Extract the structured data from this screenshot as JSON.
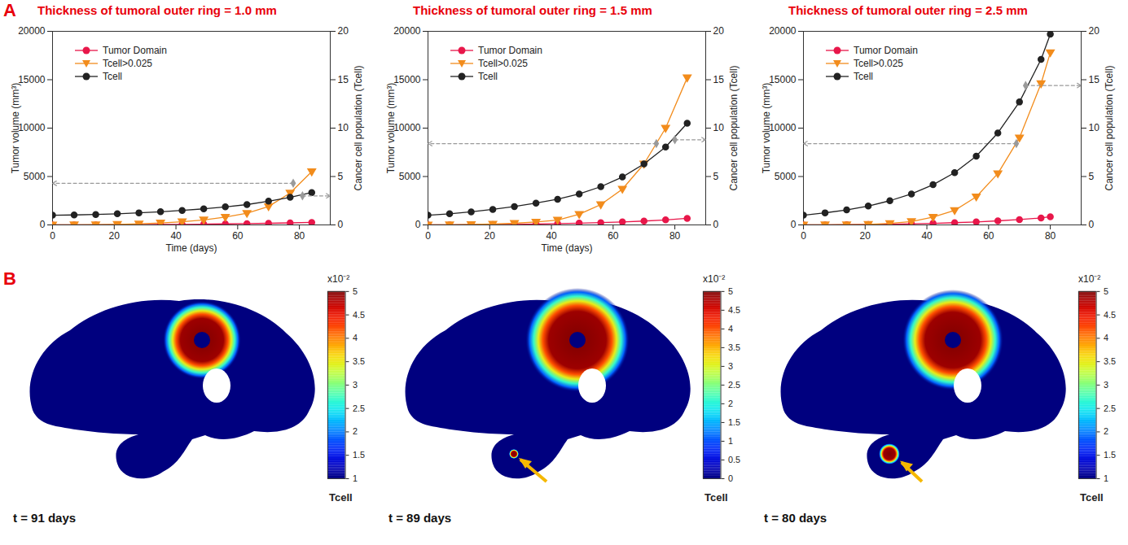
{
  "panel_labels": [
    "A",
    "B"
  ],
  "chart_data": [
    {
      "type": "line",
      "title": "Thickness of tumoral outer ring = 1.0 mm",
      "xlabel": "Time (days)",
      "ylabel": "Tumor volume (mm³)",
      "y2label": "Cancer cell population (Tcell)",
      "xlim": [
        0,
        90
      ],
      "xticks": [
        0,
        20,
        40,
        60,
        80
      ],
      "ylim": [
        0,
        20000
      ],
      "yticks": [
        0,
        5000,
        10000,
        15000,
        20000
      ],
      "y2lim": [
        0,
        20
      ],
      "y2ticks": [
        0,
        5,
        10,
        15,
        20
      ],
      "legend": "upper left",
      "x": [
        0,
        7,
        14,
        21,
        28,
        35,
        42,
        49,
        56,
        63,
        70,
        77,
        84
      ],
      "series": [
        {
          "name": "Tumor Domain",
          "color": "#e8174a",
          "marker": "circle",
          "values": [
            0,
            5,
            10,
            20,
            30,
            45,
            60,
            80,
            105,
            135,
            170,
            210,
            260
          ]
        },
        {
          "name": "Tcell>0.025",
          "color": "#f28c1c",
          "marker": "triangle-down",
          "values": [
            0,
            10,
            30,
            60,
            110,
            200,
            330,
            520,
            800,
            1200,
            1900,
            3300,
            5500
          ]
        },
        {
          "name": "Tcell",
          "color": "#222222",
          "marker": "circle",
          "axis": "y2",
          "values": [
            1.0,
            1.03,
            1.08,
            1.15,
            1.25,
            1.36,
            1.5,
            1.66,
            1.86,
            2.1,
            2.45,
            2.85,
            3.35
          ]
        }
      ],
      "guides": [
        {
          "x": 78,
          "y": 4300,
          "axis": "y"
        },
        {
          "x": 81,
          "y": 3,
          "axis": "y2"
        }
      ]
    },
    {
      "type": "line",
      "title": "Thickness of tumoral outer ring = 1.5 mm",
      "xlabel": "Time (days)",
      "ylabel": "Tumor volume (mm³)",
      "y2label": "Cancer cell population (Tcell)",
      "xlim": [
        0,
        90
      ],
      "xticks": [
        0,
        20,
        40,
        60,
        80
      ],
      "ylim": [
        0,
        20000
      ],
      "yticks": [
        0,
        5000,
        10000,
        15000,
        20000
      ],
      "y2lim": [
        0,
        20
      ],
      "y2ticks": [
        0,
        5,
        10,
        15,
        20
      ],
      "legend": "upper left",
      "x": [
        0,
        7,
        14,
        21,
        28,
        35,
        42,
        49,
        56,
        63,
        70,
        77,
        84
      ],
      "series": [
        {
          "name": "Tumor Domain",
          "color": "#e8174a",
          "marker": "circle",
          "values": [
            0,
            10,
            20,
            40,
            60,
            90,
            130,
            180,
            240,
            310,
            400,
            520,
            680
          ]
        },
        {
          "name": "Tcell>0.025",
          "color": "#f28c1c",
          "marker": "triangle-down",
          "values": [
            0,
            10,
            40,
            90,
            170,
            300,
            500,
            1100,
            2100,
            3700,
            6300,
            10000,
            15200
          ]
        },
        {
          "name": "Tcell",
          "color": "#222222",
          "marker": "circle",
          "axis": "y2",
          "values": [
            1.0,
            1.15,
            1.35,
            1.6,
            1.9,
            2.25,
            2.65,
            3.2,
            3.95,
            4.95,
            6.3,
            8.05,
            10.5
          ]
        }
      ],
      "guides": [
        {
          "x": 74,
          "y": 8400,
          "axis": "y"
        },
        {
          "x": 80,
          "y": 8.8,
          "axis": "y2"
        }
      ]
    },
    {
      "type": "line",
      "title": "Thickness of tumoral outer ring = 2.5 mm",
      "ylabel": "Tumor volume (mm³)",
      "y2label": "Cancer cell population (Tcell)",
      "xlim": [
        0,
        90
      ],
      "xticks": [
        0,
        20,
        40,
        60,
        80
      ],
      "ylim": [
        0,
        20000
      ],
      "yticks": [
        0,
        5000,
        10000,
        15000,
        20000
      ],
      "y2lim": [
        0,
        20
      ],
      "y2ticks": [
        0,
        5,
        10,
        15,
        20
      ],
      "legend": "upper left",
      "x": [
        0,
        7,
        14,
        21,
        28,
        35,
        42,
        49,
        56,
        63,
        70,
        77,
        80
      ],
      "series": [
        {
          "name": "Tumor Domain",
          "color": "#e8174a",
          "marker": "circle",
          "values": [
            0,
            10,
            20,
            40,
            70,
            110,
            160,
            230,
            310,
            420,
            550,
            720,
            850
          ]
        },
        {
          "name": "Tcell>0.025",
          "color": "#f28c1c",
          "marker": "triangle-down",
          "values": [
            0,
            10,
            20,
            60,
            150,
            350,
            800,
            1500,
            2900,
            5300,
            9000,
            14600,
            17800
          ]
        },
        {
          "name": "Tcell",
          "color": "#222222",
          "marker": "circle",
          "axis": "y2",
          "values": [
            1.0,
            1.25,
            1.55,
            1.95,
            2.5,
            3.2,
            4.15,
            5.4,
            7.1,
            9.5,
            12.7,
            17.1,
            19.7
          ]
        }
      ],
      "guides": [
        {
          "x": 69,
          "y": 8400,
          "axis": "y"
        },
        {
          "x": 72,
          "y": 14.4,
          "axis": "y2"
        }
      ]
    },
    {
      "type": "heatmap",
      "annotation": "t = 91 days",
      "colorbar_label": "Tcell",
      "colorbar_scale_label": "x10⁻²",
      "colorbar_range": [
        1,
        5
      ],
      "colorbar_ticks": [
        1,
        1.5,
        2,
        2.5,
        3,
        3.5,
        4,
        4.5,
        5
      ]
    },
    {
      "type": "heatmap",
      "annotation": "t = 89 days",
      "colorbar_label": "Tcell",
      "colorbar_scale_label": "x10⁻²",
      "colorbar_range": [
        0,
        5
      ],
      "colorbar_ticks": [
        0,
        0.5,
        1,
        1.5,
        2,
        2.5,
        3,
        3.5,
        4,
        4.5,
        5
      ]
    },
    {
      "type": "heatmap",
      "annotation": "t = 80 days",
      "colorbar_label": "Tcell",
      "colorbar_scale_label": "x10⁻²",
      "colorbar_range": [
        1,
        5
      ],
      "colorbar_ticks": [
        1,
        1.5,
        2,
        2.5,
        3,
        3.5,
        4,
        4.5,
        5
      ]
    }
  ]
}
